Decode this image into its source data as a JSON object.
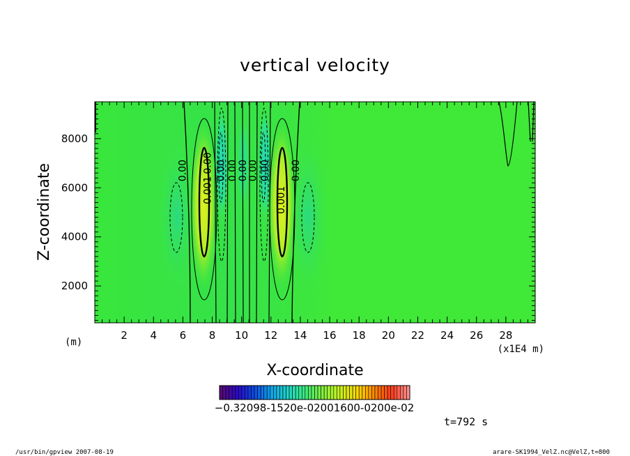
{
  "chart_data": {
    "type": "contour",
    "title": "vertical velocity",
    "xlabel": "X-coordinate",
    "ylabel": "Z-coordinate",
    "x_units": "(m)",
    "x_scale_label": "(x1E4 m)",
    "xlim": [
      0,
      30
    ],
    "ylim": [
      500,
      9500
    ],
    "x_ticks": [
      2,
      4,
      6,
      8,
      10,
      12,
      14,
      16,
      18,
      20,
      22,
      24,
      26,
      28
    ],
    "x_tick_labels": [
      "2",
      "4",
      "6",
      "8",
      "10",
      "12",
      "14",
      "16",
      "18",
      "20",
      "22",
      "24",
      "26",
      "28"
    ],
    "y_ticks": [
      2000,
      4000,
      6000,
      8000
    ],
    "y_tick_labels": [
      "2000",
      "4000",
      "6000",
      "8000"
    ],
    "contour_labels": [
      {
        "text": "0.00",
        "x": 6.2,
        "y": 6700
      },
      {
        "text": "0.001",
        "x": 7.9,
        "y": 5900
      },
      {
        "text": "0.00",
        "x": 7.9,
        "y": 7000
      },
      {
        "text": "0.00",
        "x": 8.8,
        "y": 6700
      },
      {
        "text": "0.00",
        "x": 9.6,
        "y": 6700
      },
      {
        "text": "0.00",
        "x": 10.3,
        "y": 6700
      },
      {
        "text": "0.00",
        "x": 11.0,
        "y": 6700
      },
      {
        "text": "0.00",
        "x": 11.8,
        "y": 6700
      },
      {
        "text": "0.001",
        "x": 12.9,
        "y": 5500
      },
      {
        "text": "0.00",
        "x": 13.9,
        "y": 6700
      }
    ],
    "colorbar": {
      "label_text": "−0.32098-1520e-02001600-0200e-02",
      "colors": [
        "#5a0a78",
        "#2a08c8",
        "#0a50e6",
        "#10a4e6",
        "#20d8c4",
        "#40e878",
        "#84f03c",
        "#c8f020",
        "#f8d800",
        "#ff8800",
        "#ff3c1c",
        "#ff8c8c"
      ]
    },
    "time_label": "t=792 s"
  },
  "footer": {
    "left": "/usr/bin/gpview   2007-08-19",
    "right": "arare-SK1994_VelZ.nc@VelZ,t=800"
  }
}
